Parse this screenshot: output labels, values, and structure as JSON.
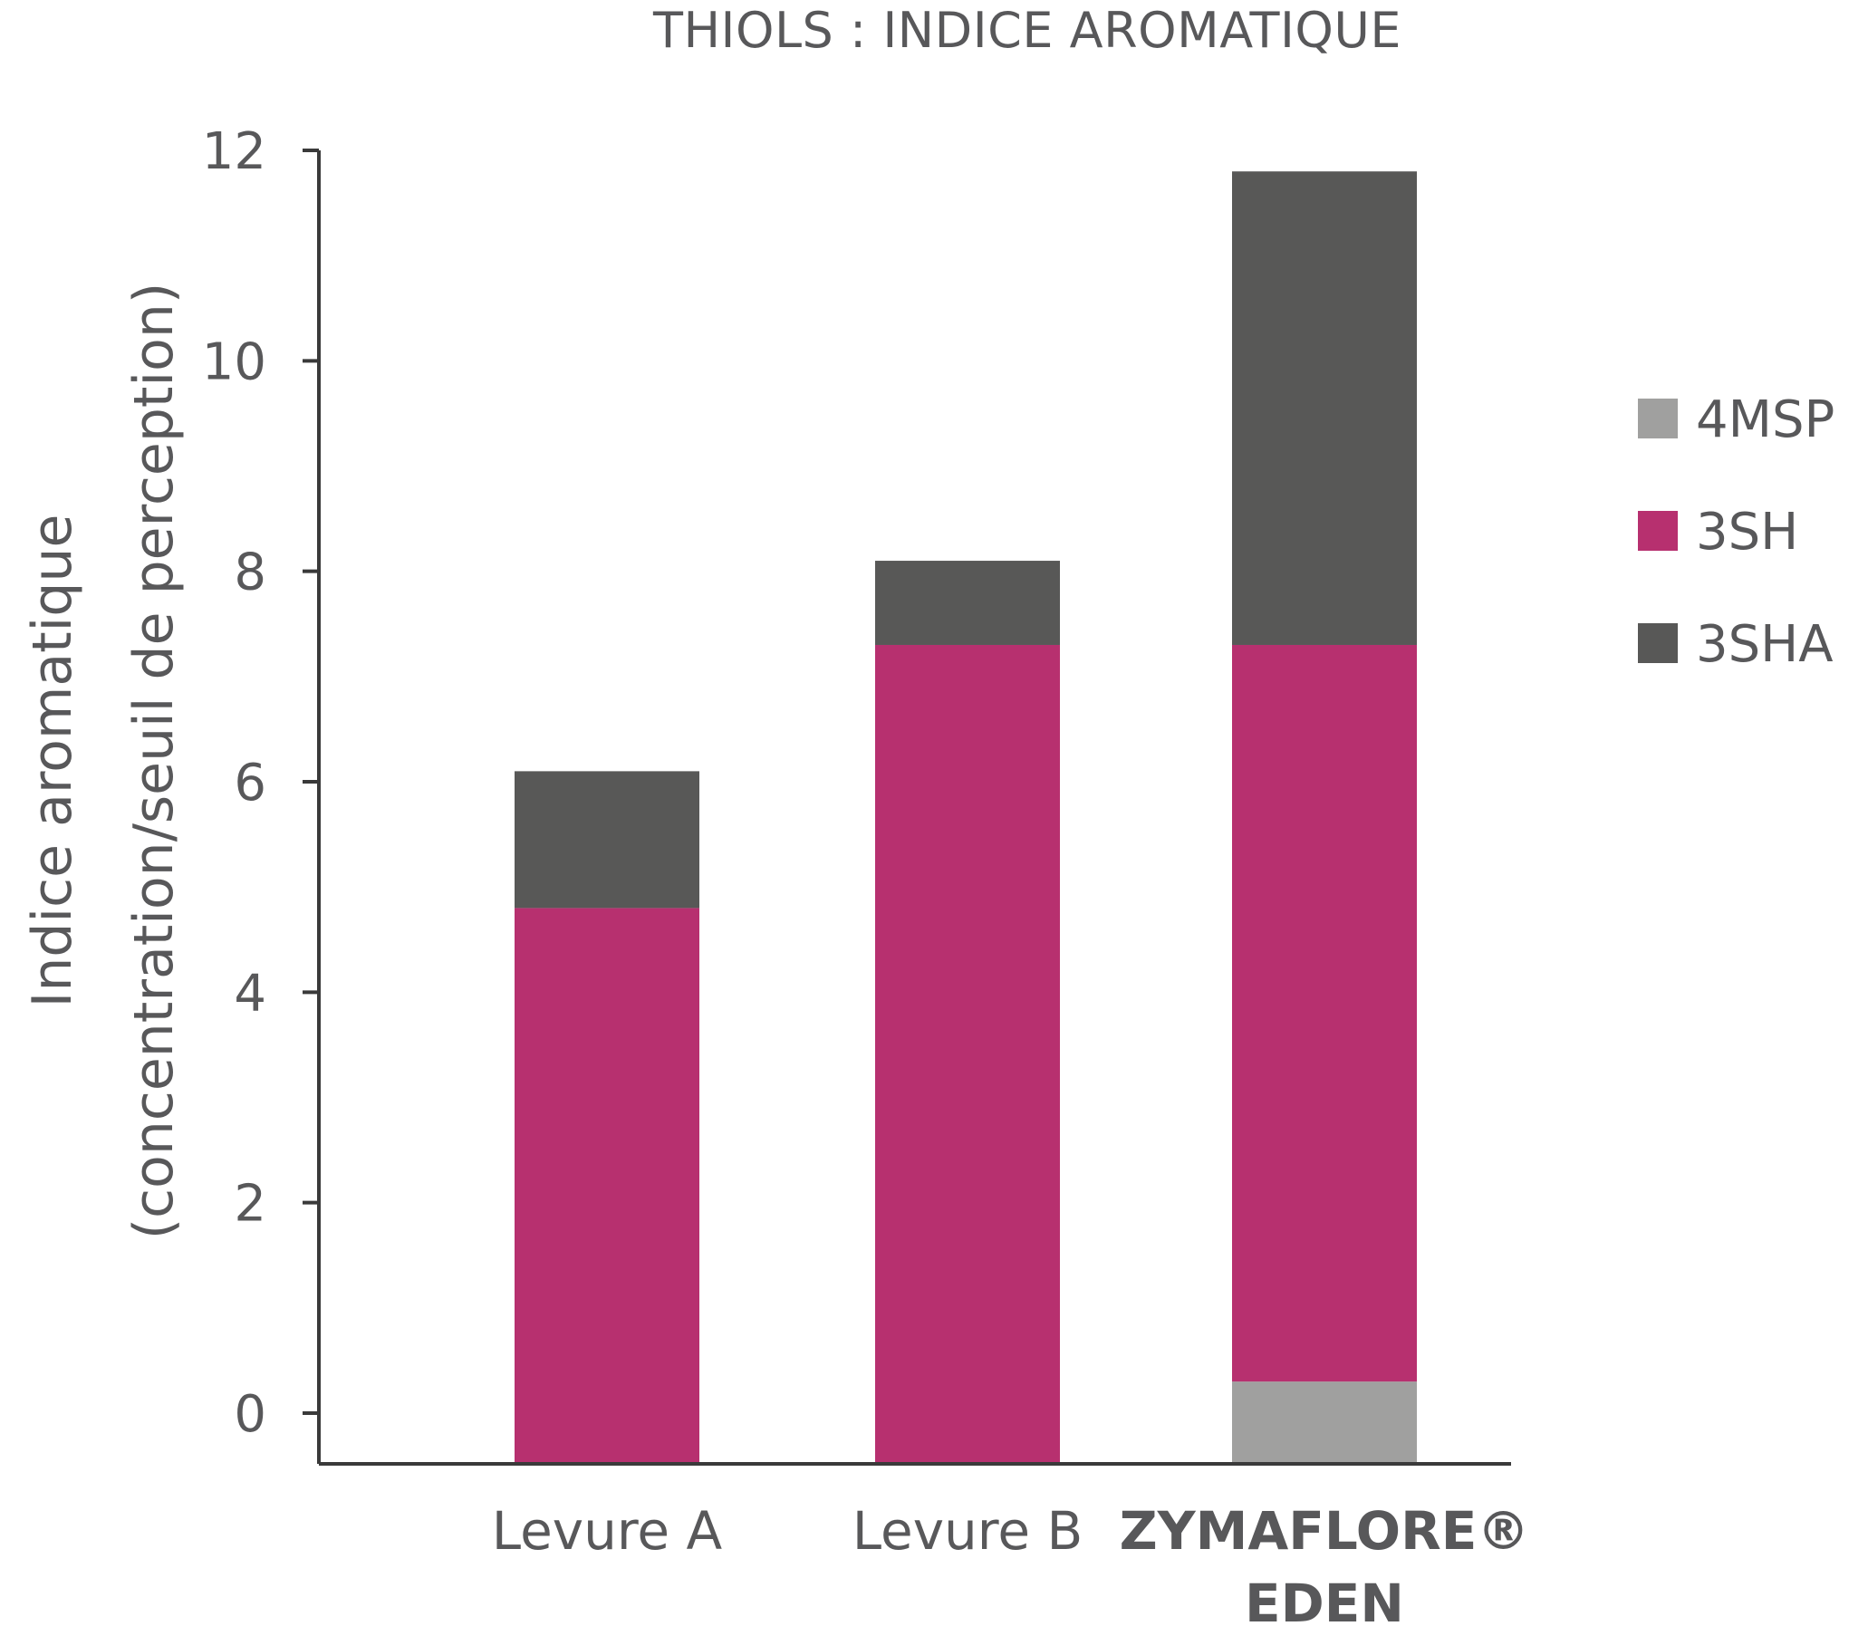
{
  "chart_data": {
    "type": "bar",
    "stacked": true,
    "title": "THIOLS : INDICE AROMATIQUE",
    "xlabel": "",
    "ylabel": "Indice aromatique",
    "ylabel_line2": "(concentration/seuil de perception)",
    "ylim": [
      0,
      12
    ],
    "yticks": [
      "0",
      "2",
      "4",
      "6",
      "8",
      "10",
      "12"
    ],
    "categories": [
      {
        "line1": "Levure A",
        "line2": "",
        "bold": false
      },
      {
        "line1": "Levure B",
        "line2": "",
        "bold": false
      },
      {
        "line1": "ZYMAFLORE®",
        "line2": "EDEN",
        "bold": true
      }
    ],
    "series": [
      {
        "name": "4MSP",
        "color": "#a0a09f",
        "values": [
          0,
          0,
          0.3
        ]
      },
      {
        "name": "3SH",
        "color": "#b7306f",
        "values": [
          4.8,
          7.3,
          7.0
        ]
      },
      {
        "name": "3SHA",
        "color": "#585857",
        "values": [
          1.3,
          0.8,
          4.5
        ]
      }
    ],
    "grid": false,
    "legend_position": "right",
    "legend_order": [
      "4MSP",
      "3SH",
      "3SHA"
    ]
  }
}
